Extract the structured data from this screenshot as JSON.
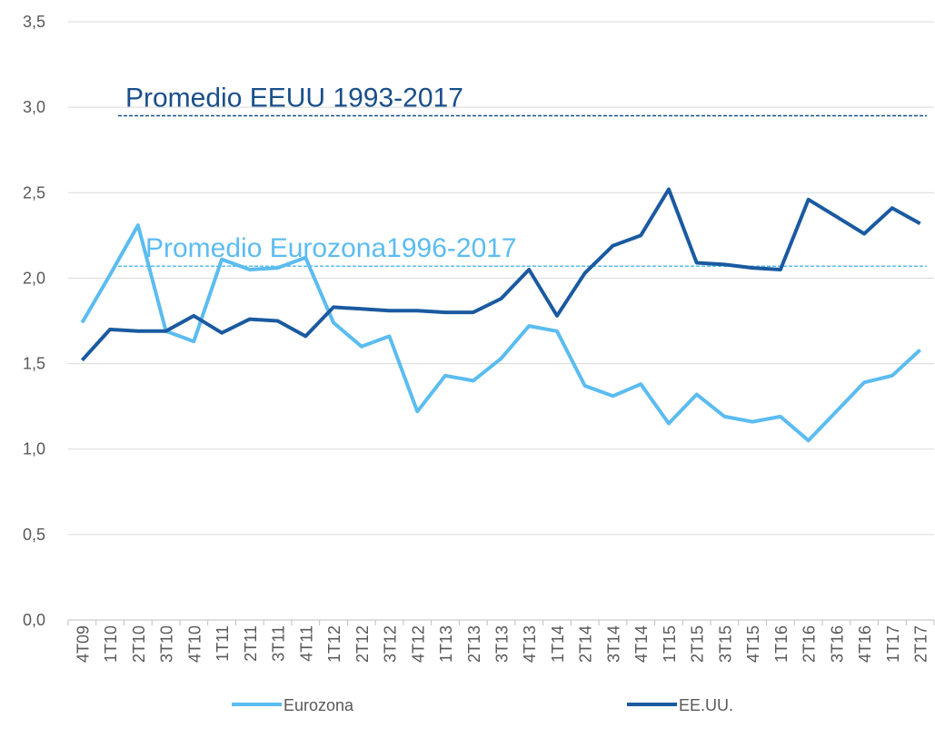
{
  "chart_data": {
    "type": "line",
    "categories": [
      "4T09",
      "1T10",
      "2T10",
      "3T10",
      "4T10",
      "1T11",
      "2T11",
      "3T11",
      "4T11",
      "1T12",
      "2T12",
      "3T12",
      "4T12",
      "1T13",
      "2T13",
      "3T13",
      "4T13",
      "1T14",
      "2T14",
      "3T14",
      "4T14",
      "1T15",
      "2T15",
      "3T15",
      "4T15",
      "1T16",
      "2T16",
      "3T16",
      "4T16",
      "1T17",
      "2T17"
    ],
    "series": [
      {
        "name": "Eurozona",
        "color": "#5bbcf0",
        "values": [
          1.74,
          2.02,
          2.31,
          1.69,
          1.63,
          2.11,
          2.05,
          2.06,
          2.12,
          1.74,
          1.6,
          1.66,
          1.22,
          1.43,
          1.4,
          1.53,
          1.72,
          1.69,
          1.37,
          1.31,
          1.38,
          1.15,
          1.32,
          1.19,
          1.16,
          1.19,
          1.05,
          1.22,
          1.39,
          1.43,
          1.58
        ]
      },
      {
        "name": "EE.UU.",
        "color": "#1a5aa0",
        "values": [
          1.52,
          1.7,
          1.69,
          1.69,
          1.78,
          1.68,
          1.76,
          1.75,
          1.66,
          1.83,
          1.82,
          1.81,
          1.81,
          1.8,
          1.8,
          1.88,
          2.05,
          1.78,
          2.03,
          2.19,
          2.25,
          2.52,
          2.09,
          2.08,
          2.06,
          2.05,
          2.46,
          2.36,
          2.26,
          2.41,
          2.32
        ]
      }
    ],
    "reference_lines": [
      {
        "label": "Promedio EEUU 1993-2017",
        "value": 2.95,
        "color": "#1a4f8a"
      },
      {
        "label": "Promedio Eurozona1996-2017",
        "value": 2.07,
        "color": "#5bbcf0"
      }
    ],
    "ylim": [
      0,
      3.5
    ],
    "yticks": [
      {
        "value": 0,
        "label": "0,0"
      },
      {
        "value": 0.5,
        "label": "0,5"
      },
      {
        "value": 1,
        "label": "1,0"
      },
      {
        "value": 1.5,
        "label": "1,5"
      },
      {
        "value": 2,
        "label": "2,0"
      },
      {
        "value": 2.5,
        "label": "2,5"
      },
      {
        "value": 3,
        "label": "3,0"
      },
      {
        "value": 3.5,
        "label": "3,5"
      }
    ],
    "grid": true,
    "legend": "bottom"
  }
}
